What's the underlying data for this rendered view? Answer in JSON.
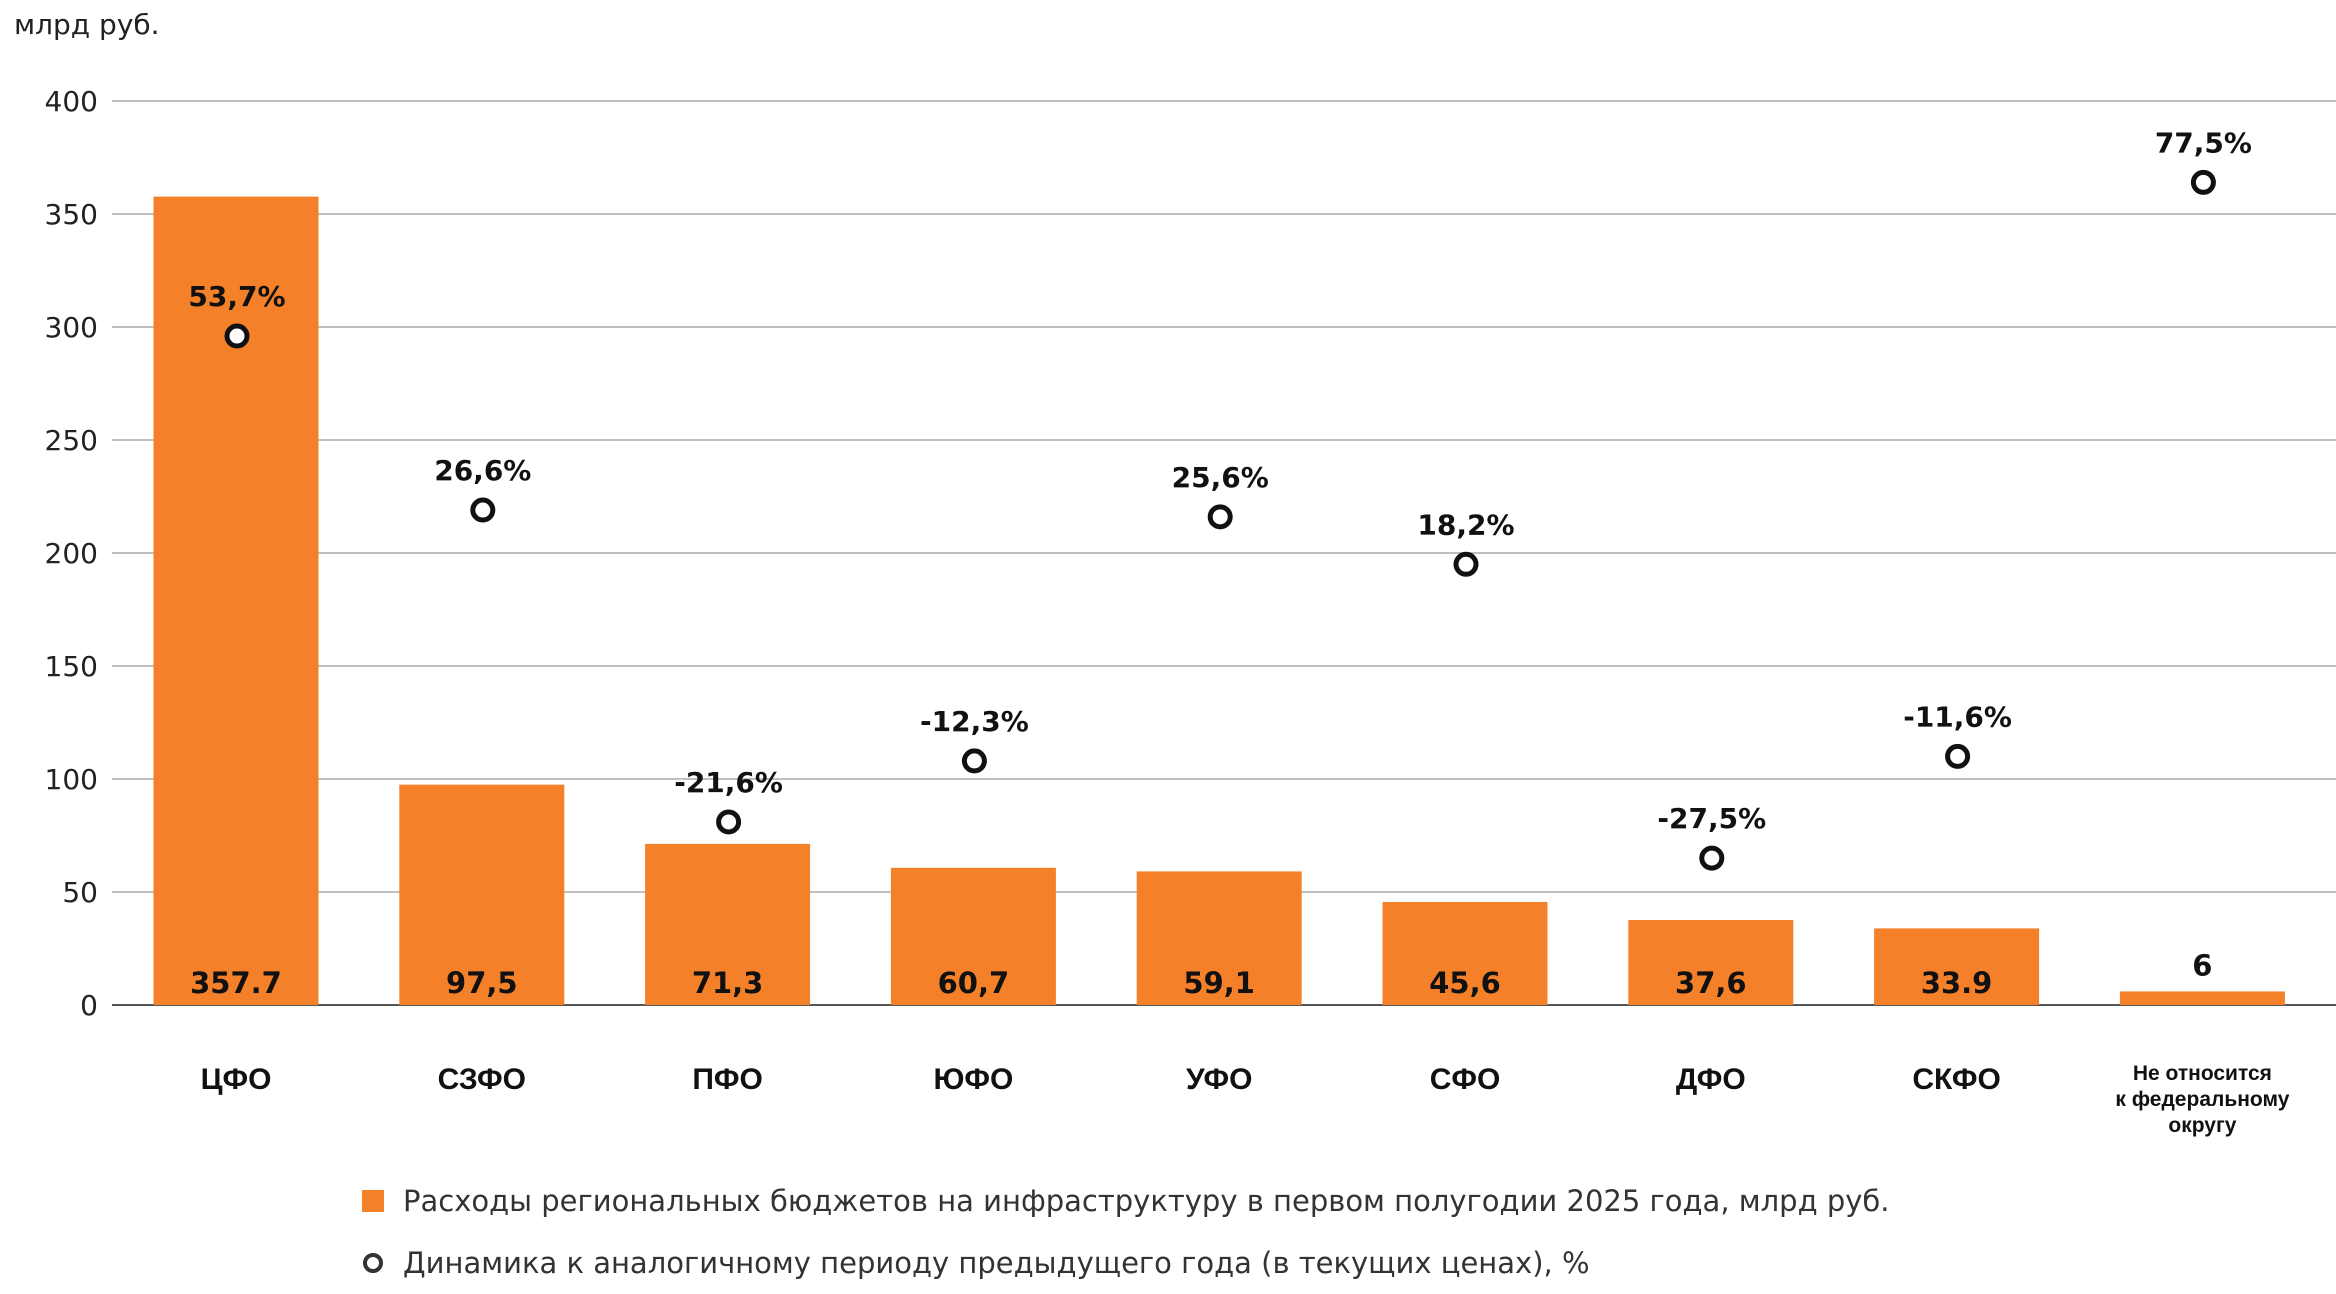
{
  "chart_data": {
    "type": "bar",
    "title": "",
    "ylabel": "млрд руб.",
    "xlabel": "",
    "ylim": [
      0,
      400
    ],
    "yticks": [
      0,
      50,
      100,
      150,
      200,
      250,
      300,
      350,
      400
    ],
    "grid": true,
    "legend_position": "bottom",
    "categories": [
      [
        "ЦФО"
      ],
      [
        "СЗФО"
      ],
      [
        "ПФО"
      ],
      [
        "ЮФО"
      ],
      [
        "УФО"
      ],
      [
        "СФО"
      ],
      [
        "ДФО"
      ],
      [
        "СКФО"
      ],
      [
        "Не относится",
        "к федеральному",
        "округу"
      ]
    ],
    "series": [
      {
        "name": "Расходы региональных бюджетов на инфраструктуру в первом полугодии 2025 года, млрд руб.",
        "type": "bar",
        "color": "#F5802A",
        "values": [
          357.7,
          97.5,
          71.3,
          60.7,
          59.1,
          45.6,
          37.6,
          33.9,
          6
        ],
        "value_labels": [
          "357.7",
          "97,5",
          "71,3",
          "60,7",
          "59,1",
          "45,6",
          "37,6",
          "33.9",
          "6"
        ]
      },
      {
        "name": "Динамика к аналогичному периоду предыдущего года (в текущих ценах), %",
        "type": "scatter",
        "marker": "hollow-circle",
        "color": "#111111",
        "values": [
          53.7,
          26.6,
          -21.6,
          -12.3,
          25.6,
          18.2,
          -27.5,
          -11.6,
          77.5
        ],
        "value_labels": [
          "53,7%",
          "26,6%",
          "-21,6%",
          "-12,3%",
          "25,6%",
          "18,2%",
          "-27,5%",
          "-11,6%",
          "77,5%"
        ],
        "marker_positions_on_value_axis": [
          296,
          219,
          81,
          108,
          216,
          195,
          65,
          110,
          364
        ]
      }
    ]
  }
}
